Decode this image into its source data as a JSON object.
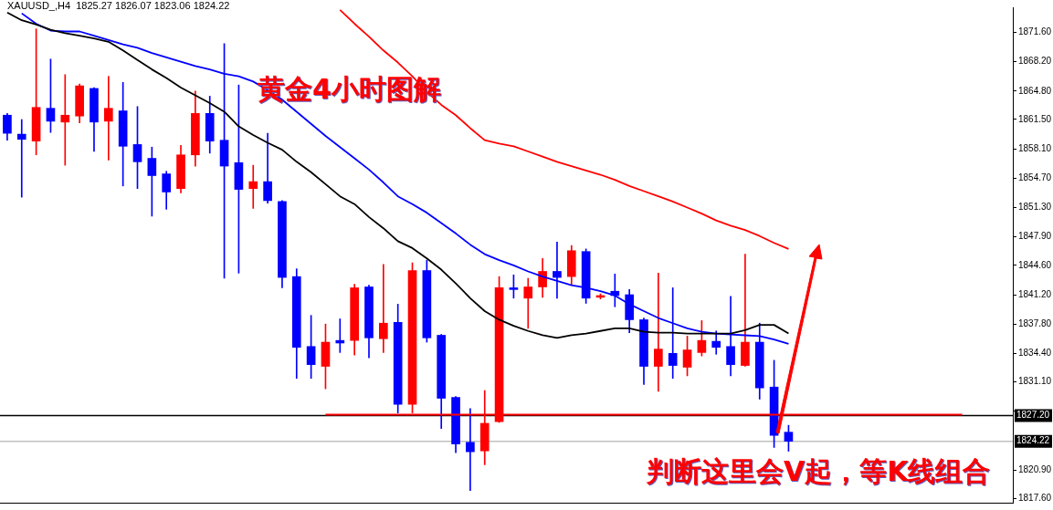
{
  "chart_data": {
    "type": "candlestick",
    "title": "XAUUSD_,H4  1825.27 1826.07 1823.06 1824.22",
    "annotations": [
      "黄金4小时图解",
      "判断这里会V起，等K线组合"
    ],
    "categories": [
      null,
      null,
      null,
      null,
      null,
      null,
      null,
      null,
      null,
      null,
      null,
      null,
      null,
      null,
      null,
      null,
      null,
      null,
      null,
      null,
      null,
      null,
      null,
      null,
      null,
      null,
      null,
      null,
      null,
      null,
      null,
      null,
      null,
      null,
      null,
      null,
      null,
      null,
      null,
      null,
      null,
      null,
      null,
      null,
      null,
      null,
      null,
      null,
      null,
      null,
      null,
      null,
      null,
      null,
      null,
      null,
      null,
      null,
      null,
      null,
      null,
      null,
      null,
      null,
      null,
      null,
      null,
      null,
      null,
      null
    ],
    "ohlc": [
      [
        1862.0,
        1862.2,
        1859.1,
        1859.9
      ],
      [
        1859.8,
        1861.5,
        1852.5,
        1859.2
      ],
      [
        1859.0,
        1872.0,
        1857.4,
        1862.9
      ],
      [
        1862.8,
        1868.5,
        1860.0,
        1861.3
      ],
      [
        1861.2,
        1866.7,
        1856.2,
        1862.0
      ],
      [
        1861.9,
        1865.6,
        1861.1,
        1865.4
      ],
      [
        1865.1,
        1865.2,
        1857.8,
        1861.2
      ],
      [
        1861.3,
        1866.5,
        1856.8,
        1862.8
      ],
      [
        1862.5,
        1865.8,
        1853.8,
        1858.4
      ],
      [
        1858.6,
        1863.0,
        1853.5,
        1856.6
      ],
      [
        1857.0,
        1858.3,
        1850.3,
        1855.0
      ],
      [
        1855.2,
        1855.5,
        1851.1,
        1853.1
      ],
      [
        1853.5,
        1858.5,
        1853.0,
        1857.4
      ],
      [
        1857.4,
        1864.8,
        1856.1,
        1862.2
      ],
      [
        1862.2,
        1864.2,
        1857.6,
        1859.0
      ],
      [
        1859.1,
        1870.3,
        1843.1,
        1856.1
      ],
      [
        1856.5,
        1865.5,
        1843.7,
        1853.4
      ],
      [
        1853.5,
        1856.2,
        1851.2,
        1854.3
      ],
      [
        1854.3,
        1859.9,
        1851.8,
        1852.1
      ],
      [
        1852.0,
        1852.1,
        1842.0,
        1843.2
      ],
      [
        1843.3,
        1844.2,
        1831.5,
        1835.1
      ],
      [
        1835.2,
        1838.8,
        1831.5,
        1833.1
      ],
      [
        1832.9,
        1837.8,
        1830.3,
        1835.7
      ],
      [
        1835.9,
        1838.4,
        1834.5,
        1835.6
      ],
      [
        1835.9,
        1842.4,
        1834.2,
        1842.0
      ],
      [
        1842.1,
        1842.3,
        1833.9,
        1836.2
      ],
      [
        1836.1,
        1844.7,
        1834.5,
        1837.9
      ],
      [
        1838.0,
        1840.1,
        1827.5,
        1828.5
      ],
      [
        1828.5,
        1844.9,
        1827.5,
        1844.0
      ],
      [
        1844.0,
        1845.2,
        1835.7,
        1836.2
      ],
      [
        1836.5,
        1836.6,
        1825.7,
        1829.2
      ],
      [
        1829.3,
        1829.4,
        1822.9,
        1823.9
      ],
      [
        1824.1,
        1828.0,
        1818.5,
        1823.0
      ],
      [
        1823.1,
        1830.1,
        1821.5,
        1826.3
      ],
      [
        1826.5,
        1843.3,
        1826.4,
        1842.0
      ],
      [
        1842.0,
        1843.5,
        1840.8,
        1841.8
      ],
      [
        1840.8,
        1843.1,
        1837.3,
        1842.1
      ],
      [
        1842.1,
        1845.4,
        1840.9,
        1843.9
      ],
      [
        1843.9,
        1847.3,
        1840.8,
        1843.2
      ],
      [
        1843.3,
        1846.9,
        1842.4,
        1846.3
      ],
      [
        1846.2,
        1846.5,
        1840.2,
        1840.8
      ],
      [
        1840.9,
        1841.3,
        1840.7,
        1841.1
      ],
      [
        1841.6,
        1843.6,
        1839.8,
        1841.1
      ],
      [
        1841.2,
        1841.8,
        1836.8,
        1838.3
      ],
      [
        1838.3,
        1838.5,
        1830.8,
        1832.9
      ],
      [
        1832.9,
        1843.7,
        1830.0,
        1834.9
      ],
      [
        1834.4,
        1842.0,
        1831.5,
        1833.0
      ],
      [
        1832.8,
        1836.4,
        1831.8,
        1834.8
      ],
      [
        1834.5,
        1838.2,
        1834.1,
        1835.9
      ],
      [
        1835.8,
        1837.0,
        1834.3,
        1835.1
      ],
      [
        1835.2,
        1841.0,
        1831.8,
        1833.1
      ],
      [
        1833.0,
        1845.9,
        1832.9,
        1835.7
      ],
      [
        1835.7,
        1837.9,
        1829.1,
        1830.4
      ],
      [
        1830.5,
        1833.6,
        1823.5,
        1824.9
      ],
      [
        1825.27,
        1826.07,
        1823.06,
        1824.22
      ],
      null,
      null,
      null,
      null,
      null,
      null,
      null,
      null,
      null,
      null,
      null,
      null,
      null,
      null,
      null
    ],
    "colors": [
      "#0000ff",
      "#0000ff",
      "#ff0000",
      "#0000ff",
      "#ff0000",
      "#ff0000",
      "#0000ff",
      "#ff0000",
      "#0000ff",
      "#0000ff",
      "#0000ff",
      "#0000ff",
      "#ff0000",
      "#ff0000",
      "#0000ff",
      "#0000ff",
      "#0000ff",
      "#ff0000",
      "#0000ff",
      "#0000ff",
      "#0000ff",
      "#0000ff",
      "#ff0000",
      "#0000ff",
      "#ff0000",
      "#0000ff",
      "#ff0000",
      "#0000ff",
      "#ff0000",
      "#0000ff",
      "#0000ff",
      "#0000ff",
      "#0000ff",
      "#ff0000",
      "#ff0000",
      "#0000ff",
      "#ff0000",
      "#ff0000",
      "#0000ff",
      "#ff0000",
      "#0000ff",
      "#ff0000",
      "#0000ff",
      "#0000ff",
      "#0000ff",
      "#ff0000",
      "#0000ff",
      "#ff0000",
      "#ff0000",
      "#0000ff",
      "#0000ff",
      "#ff0000",
      "#0000ff",
      "#0000ff",
      "#0000ff",
      null,
      null,
      null,
      null,
      null,
      null,
      null,
      null,
      null,
      null,
      null,
      null,
      null,
      null,
      null
    ],
    "series": [
      {
        "type": "line",
        "color": "#ff0000",
        "values": [
          null,
          null,
          null,
          null,
          null,
          null,
          null,
          null,
          null,
          null,
          null,
          null,
          null,
          null,
          null,
          null,
          null,
          null,
          null,
          null,
          null,
          null,
          null,
          1874.2,
          1872.6,
          1871.1,
          1869.5,
          1868.1,
          1866.5,
          1864.7,
          1863.2,
          1862.0,
          1860.5,
          1859.1,
          1858.7,
          1858.4,
          1857.8,
          1857.2,
          1856.6,
          1856.1,
          1855.6,
          1855.1,
          1854.5,
          1853.8,
          1853.2,
          1852.6,
          1852.0,
          1851.3,
          1850.6,
          1849.8,
          1849.2,
          1848.7,
          1848.0,
          1847.2,
          1846.5,
          null,
          null,
          null,
          null,
          null,
          null,
          null,
          null,
          null,
          null,
          null,
          null,
          null,
          null,
          null
        ]
      },
      {
        "type": "line",
        "color": "#0000ff",
        "values": [
          null,
          1873.8,
          1872.6,
          1871.8,
          1871.7,
          1871.7,
          1871.2,
          1870.7,
          1870.2,
          1869.8,
          1869.2,
          1868.7,
          1868.2,
          1867.7,
          1867.3,
          1866.8,
          1866.5,
          1865.9,
          1864.9,
          1863.8,
          1862.4,
          1861.0,
          1859.6,
          1858.3,
          1857.0,
          1855.7,
          1854.2,
          1852.6,
          1851.7,
          1850.7,
          1849.5,
          1848.3,
          1847.0,
          1845.9,
          1845.2,
          1844.6,
          1843.9,
          1843.3,
          1842.8,
          1842.3,
          1842.0,
          1841.6,
          1841.1,
          1840.1,
          1839.3,
          1838.5,
          1837.9,
          1837.3,
          1836.9,
          1836.7,
          1836.6,
          1836.5,
          1836.4,
          1836.0,
          1835.5,
          null,
          null,
          null,
          null,
          null,
          null,
          null,
          null,
          null,
          null,
          null,
          null,
          null,
          null,
          null
        ]
      },
      {
        "type": "line",
        "color": "#000000",
        "values": [
          1873.9,
          1873.0,
          1872.5,
          1871.9,
          1871.5,
          1871.2,
          1870.9,
          1870.5,
          1869.5,
          1868.4,
          1867.3,
          1866.3,
          1865.2,
          1864.3,
          1863.4,
          1862.4,
          1860.7,
          1859.7,
          1858.8,
          1858.0,
          1856.6,
          1855.4,
          1854.0,
          1852.6,
          1851.7,
          1850.2,
          1848.9,
          1847.4,
          1846.6,
          1845.4,
          1844.1,
          1842.5,
          1840.8,
          1839.3,
          1838.3,
          1837.6,
          1837.0,
          1836.5,
          1836.2,
          1836.5,
          1836.7,
          1837.0,
          1837.3,
          1837.3,
          1836.9,
          1836.8,
          1836.8,
          1836.7,
          1836.7,
          1836.7,
          1836.7,
          1837.1,
          1837.7,
          1837.7,
          1836.7,
          null,
          null,
          null,
          null,
          null,
          null,
          null,
          null,
          null,
          null,
          null,
          null,
          null,
          null,
          null
        ]
      },
      {
        "type": "line",
        "color": "#ff0000",
        "values": [
          null,
          null,
          null,
          null,
          null,
          null,
          null,
          null,
          null,
          null,
          null,
          null,
          null,
          null,
          null,
          null,
          null,
          null,
          null,
          null,
          null,
          null,
          1827.3,
          1827.3,
          1827.3,
          1827.3,
          1827.3,
          1827.3,
          1827.3,
          1827.3,
          1827.3,
          1827.3,
          1827.3,
          1827.3,
          1827.3,
          1827.3,
          1827.3,
          1827.3,
          1827.3,
          1827.3,
          1827.3,
          1827.3,
          1827.3,
          1827.3,
          1827.3,
          1827.3,
          1827.3,
          1827.3,
          1827.3,
          1827.3,
          1827.3,
          1827.3,
          1827.3,
          1827.3,
          1827.3,
          1827.3,
          1827.3,
          1827.3,
          1827.3,
          1827.3,
          1827.3,
          1827.3,
          1827.3,
          1827.3,
          1827.3,
          1827.3,
          1827.3,
          null,
          null,
          null
        ]
      }
    ],
    "ref_lines": [
      {
        "axis": "y",
        "value": 1827.2,
        "label": "1827.20",
        "color": "#000000"
      },
      {
        "axis": "y",
        "value": 1824.22,
        "label": "1824.22",
        "color": "#c0c0c0"
      }
    ],
    "ylim": [
      1817.1,
      1874.5
    ],
    "yticks": [
      {
        "value": 1817.6,
        "label": "1817.60"
      },
      {
        "value": 1820.9,
        "label": "1820.90"
      },
      {
        "value": 1827.7,
        "label": null
      },
      {
        "value": 1831.1,
        "label": "1831.10"
      },
      {
        "value": 1834.4,
        "label": "1834.40"
      },
      {
        "value": 1837.8,
        "label": "1837.80"
      },
      {
        "value": 1841.2,
        "label": "1841.20"
      },
      {
        "value": 1844.6,
        "label": "1844.60"
      },
      {
        "value": 1847.9,
        "label": "1847.90"
      },
      {
        "value": 1851.3,
        "label": "1851.30"
      },
      {
        "value": 1854.7,
        "label": "1854.70"
      },
      {
        "value": 1858.1,
        "label": "1858.10"
      },
      {
        "value": 1861.5,
        "label": "1861.50"
      },
      {
        "value": 1864.8,
        "label": "1864.80"
      },
      {
        "value": 1868.2,
        "label": "1868.20"
      },
      {
        "value": 1871.6,
        "label": "1871.60"
      }
    ],
    "tick_labels": "y",
    "grid": false,
    "legend": false
  }
}
